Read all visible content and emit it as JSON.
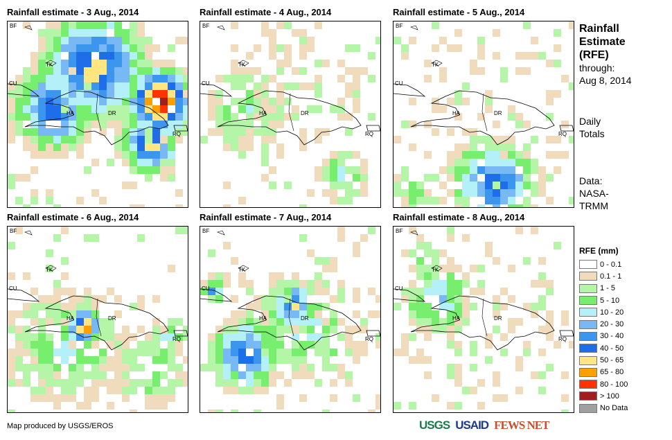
{
  "panels": [
    {
      "title": "Rainfall estimate - 3 Aug., 2014"
    },
    {
      "title": "Rainfall estimate - 4 Aug., 2014"
    },
    {
      "title": "Rainfall estimate - 5 Aug., 2014"
    },
    {
      "title": "Rainfall estimate - 6 Aug., 2014"
    },
    {
      "title": "Rainfall estimate - 7 Aug., 2014"
    },
    {
      "title": "Rainfall estimate - 8 Aug., 2014"
    }
  ],
  "map_labels": {
    "bf": "BF",
    "tk": "TK",
    "cu": "CU",
    "ha": "HA",
    "dr": "DR",
    "rq": "RQ"
  },
  "side": {
    "title1": "Rainfall",
    "title2": "Estimate",
    "title3": "(RFE)",
    "through1": "through:",
    "through2": "Aug 8, 2014",
    "daily1": "Daily",
    "daily2": "Totals",
    "data1": "Data:",
    "data2": "NASA-",
    "data3": "TRMM"
  },
  "legend": {
    "title": "RFE (mm)",
    "items": [
      {
        "label": "0 - 0.1",
        "color": "#ffffff"
      },
      {
        "label": "0.1 - 1",
        "color": "#f0dcbc"
      },
      {
        "label": "1 - 5",
        "color": "#b4f5a8"
      },
      {
        "label": "5 - 10",
        "color": "#78ee6e"
      },
      {
        "label": "10 - 20",
        "color": "#b4f0f8"
      },
      {
        "label": "20 - 30",
        "color": "#78b8f4"
      },
      {
        "label": "30 - 40",
        "color": "#3c96ee"
      },
      {
        "label": "40 - 50",
        "color": "#1e6eea"
      },
      {
        "label": "50 - 65",
        "color": "#ffe680"
      },
      {
        "label": "65 - 80",
        "color": "#ffa000"
      },
      {
        "label": "80 - 100",
        "color": "#ff3200"
      },
      {
        "label": "> 100",
        "color": "#a01e1e"
      },
      {
        "label": "No Data",
        "color": "#a0a0a0"
      }
    ]
  },
  "credit": "Map produced by USGS/EROS",
  "logos": {
    "usgs": "USGS",
    "usaid": "USAID",
    "fews": "FEWS NET"
  }
}
